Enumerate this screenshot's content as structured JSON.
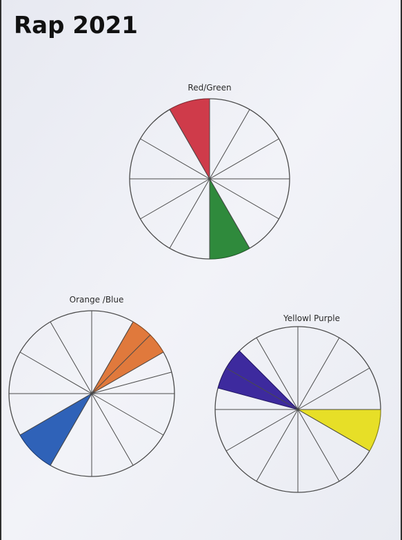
{
  "page": {
    "title_text": "Rap 2021"
  },
  "wheels": [
    {
      "id": "red-green",
      "label": "Red/Green",
      "segments": 12,
      "colored_segments": [
        {
          "color_name": "red",
          "hex": "#cf3b4a"
        },
        {
          "color_name": "green",
          "hex": "#2f8a3c"
        }
      ]
    },
    {
      "id": "orange-blue",
      "label": "Orange /Blue",
      "segments": 12,
      "colored_segments": [
        {
          "color_name": "orange",
          "hex": "#e0793c"
        },
        {
          "color_name": "blue",
          "hex": "#2f62b8"
        }
      ]
    },
    {
      "id": "yellow-purple",
      "label": "Yellowl Purple",
      "segments": 12,
      "colored_segments": [
        {
          "color_name": "purple",
          "hex": "#3d2a9e"
        },
        {
          "color_name": "yellow",
          "hex": "#e7df27"
        }
      ]
    }
  ],
  "colors": {
    "paper": "#f3f4f9",
    "pencil": "#4a4a4a"
  }
}
